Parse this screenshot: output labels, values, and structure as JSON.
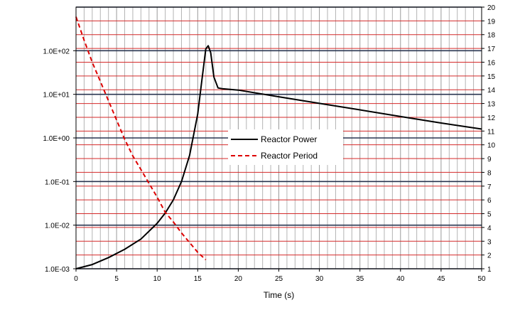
{
  "chart_data": {
    "type": "line",
    "title": "",
    "xlabel": "Time (s)",
    "ylabel": "",
    "y2label": "",
    "xlim": [
      0,
      50
    ],
    "ylim": [
      0.001,
      1000
    ],
    "y_scale": "log",
    "y2lim": [
      1,
      20
    ],
    "grid": true,
    "legend_position": "center-right",
    "x_ticks": [
      "0",
      "5",
      "10",
      "15",
      "20",
      "25",
      "30",
      "35",
      "40",
      "45",
      "50"
    ],
    "y_ticks": [
      "1.0E-03",
      "1.0E-02",
      "1.0E-01",
      "1.0E+00",
      "1.0E+01",
      "1.0E+02"
    ],
    "y2_ticks": [
      "1",
      "2",
      "3",
      "4",
      "5",
      "6",
      "7",
      "8",
      "9",
      "10",
      "11",
      "12",
      "13",
      "14",
      "15",
      "16",
      "17",
      "18",
      "19",
      "20"
    ],
    "series": [
      {
        "name": "Reactor Power",
        "color": "#000000",
        "dash": "solid",
        "axis": "left",
        "x": [
          0,
          2,
          4,
          6,
          8,
          10,
          11,
          12,
          13,
          14,
          15,
          15.5,
          16,
          16.3,
          16.6,
          17,
          17.5,
          18,
          20,
          25,
          30,
          35,
          40,
          45,
          50
        ],
        "y": [
          0.001,
          0.00125,
          0.0018,
          0.0028,
          0.0048,
          0.011,
          0.019,
          0.038,
          0.1,
          0.4,
          3.5,
          20,
          110,
          130,
          90,
          25,
          14,
          13.5,
          12.5,
          8.8,
          6.2,
          4.4,
          3.1,
          2.2,
          1.6
        ]
      },
      {
        "name": "Reactor Period",
        "color": "#dd0000",
        "dash": "dashed",
        "axis": "right",
        "x": [
          0,
          1,
          2,
          3,
          4,
          5,
          6,
          7,
          8,
          9,
          10,
          11,
          12,
          13,
          14,
          15,
          16
        ],
        "y": [
          19.3,
          17.6,
          16.0,
          14.6,
          13.2,
          11.8,
          10.4,
          9.2,
          8.2,
          7.2,
          6.2,
          5.1,
          4.4,
          3.6,
          2.9,
          2.2,
          1.65
        ]
      }
    ]
  }
}
